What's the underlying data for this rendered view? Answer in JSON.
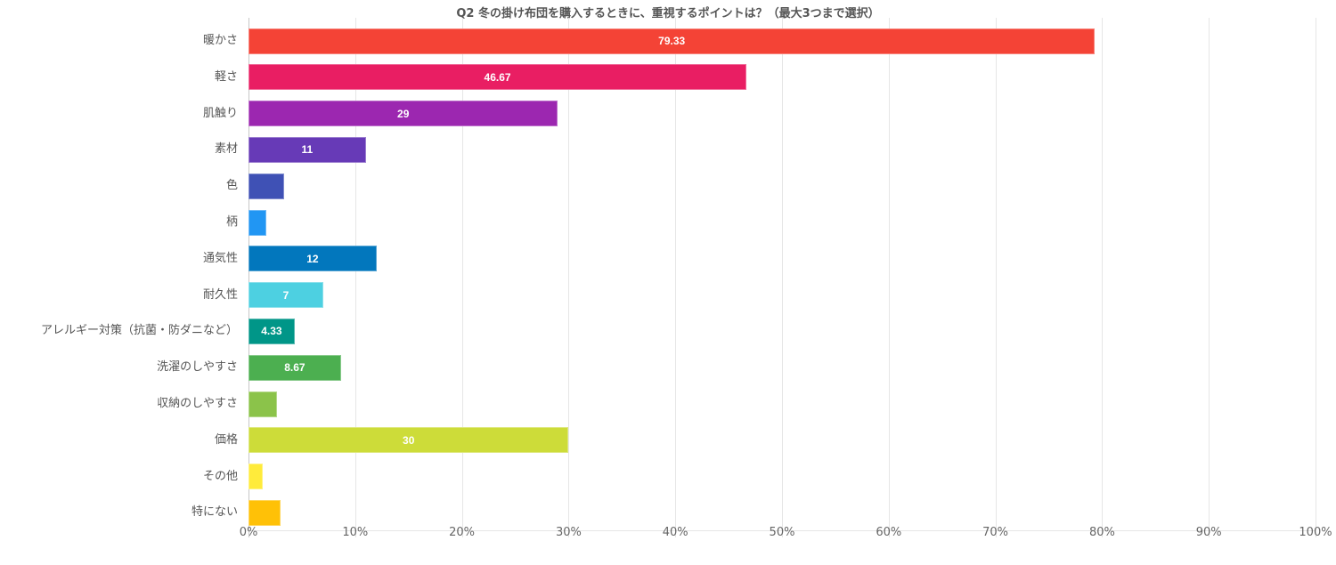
{
  "chart_data": {
    "type": "bar",
    "orientation": "horizontal",
    "title": "Q2 冬の掛け布団を購入するときに、重視するポイントは？（最大3つまで選択）",
    "xlabel": "",
    "ylabel": "",
    "xlim": [
      0,
      100
    ],
    "x_tick_labels": [
      "0%",
      "10%",
      "20%",
      "30%",
      "40%",
      "50%",
      "60%",
      "70%",
      "80%",
      "90%",
      "100%"
    ],
    "grid": true,
    "legend": null,
    "categories": [
      "暖かさ",
      "軽さ",
      "肌触り",
      "素材",
      "色",
      "柄",
      "通気性",
      "耐久性",
      "アレルギー対策（抗菌・防ダニなど）",
      "洗濯のしやすさ",
      "収納のしやすさ",
      "価格",
      "その他",
      "特にない"
    ],
    "values": [
      79.33,
      46.67,
      29,
      11,
      3.33,
      1.67,
      12,
      7,
      4.33,
      8.67,
      2.67,
      30,
      1.33,
      3
    ],
    "value_labels": [
      "79.33",
      "46.67",
      "29",
      "11",
      "",
      "",
      "12",
      "7",
      "4.33",
      "8.67",
      "",
      "30",
      "",
      ""
    ],
    "colors": [
      "#f44336",
      "#e91e63",
      "#9c27b0",
      "#673ab7",
      "#3f51b5",
      "#2196f3",
      "#0277bd",
      "#4dd0e1",
      "#009688",
      "#4caf50",
      "#8bc34a",
      "#cddc39",
      "#ffeb3b",
      "#ffc107"
    ]
  }
}
